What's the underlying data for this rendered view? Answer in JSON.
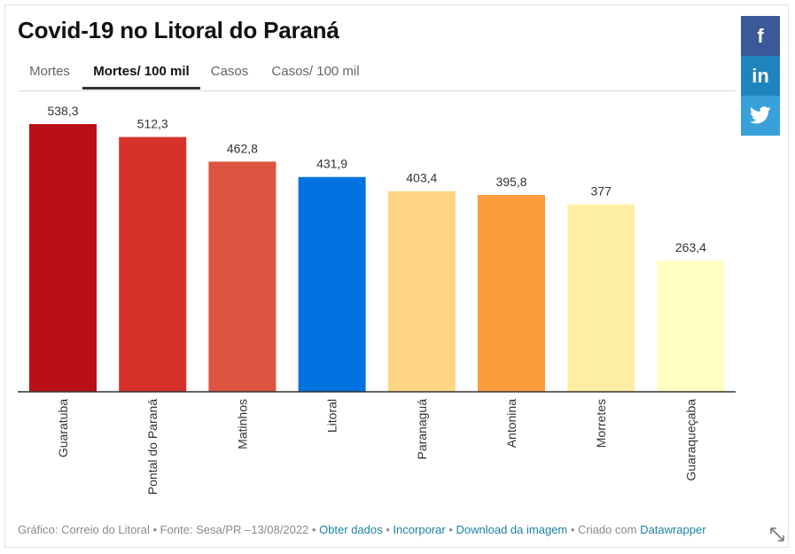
{
  "title": "Covid-19 no Litoral do Paraná",
  "tabs": [
    {
      "label": "Mortes",
      "active": false
    },
    {
      "label": "Mortes/ 100 mil",
      "active": true
    },
    {
      "label": "Casos",
      "active": false
    },
    {
      "label": "Casos/ 100 mil",
      "active": false
    }
  ],
  "share": {
    "facebook": "f",
    "linkedin": "in",
    "twitter_icon": "twitter-bird-icon"
  },
  "chart_data": {
    "type": "bar",
    "title": "",
    "xlabel": "",
    "ylabel": "",
    "ylim": [
      0,
      580
    ],
    "grid": false,
    "categories": [
      "Guaratuba",
      "Pontal do Paraná",
      "Matinhos",
      "Litoral",
      "Paranaguá",
      "Antonina",
      "Morretes",
      "Guaraqueçaba"
    ],
    "values": [
      538.3,
      512.3,
      462.8,
      431.9,
      403.4,
      395.8,
      377,
      263.4
    ],
    "value_labels": [
      "538,3",
      "512,3",
      "462,8",
      "431,9",
      "403,4",
      "395,8",
      "377",
      "263,4"
    ],
    "colors": [
      "#b90f18",
      "#d6322a",
      "#dc5540",
      "#0073e0",
      "#fdd583",
      "#fd9c3a",
      "#fdeea5",
      "#feffc2"
    ]
  },
  "footer": {
    "source": "Gráfico: Correio do Litoral • Fonte: Sesa/PR –13/08/2022 •",
    "get_data": "Obter dados",
    "sep1": "•",
    "embed": "Incorporar",
    "sep2": "•",
    "download": "Download da imagem",
    "created": "• Criado com",
    "datawrapper": "Datawrapper"
  }
}
